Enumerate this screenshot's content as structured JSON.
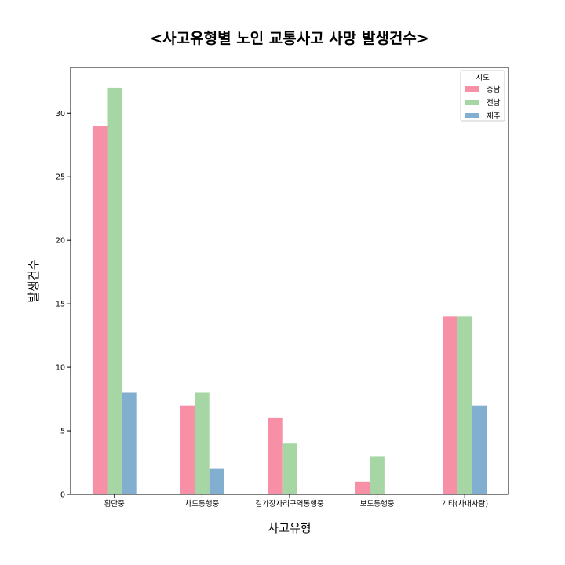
{
  "chart_data": {
    "type": "bar",
    "title": "<사고유형별 노인 교통사고 사망 발생건수>",
    "xlabel": "사고유형",
    "ylabel": "발생건수",
    "categories": [
      "횡단중",
      "차도통행중",
      "길가장자리구역통행중",
      "보도통행중",
      "기타(차대사람)"
    ],
    "series": [
      {
        "name": "충남",
        "color": "#f78fa7",
        "values": [
          29,
          7,
          6,
          1,
          14
        ]
      },
      {
        "name": "전남",
        "color": "#a6d6a4",
        "values": [
          32,
          8,
          4,
          3,
          14
        ]
      },
      {
        "name": "제주",
        "color": "#82aecf",
        "values": [
          8,
          2,
          0,
          0,
          7
        ]
      }
    ],
    "ylim": [
      0,
      33.6
    ],
    "yticks": [
      0,
      5,
      10,
      15,
      20,
      25,
      30
    ],
    "grid": false,
    "legend": {
      "title": "시도",
      "position": "top-right"
    }
  }
}
